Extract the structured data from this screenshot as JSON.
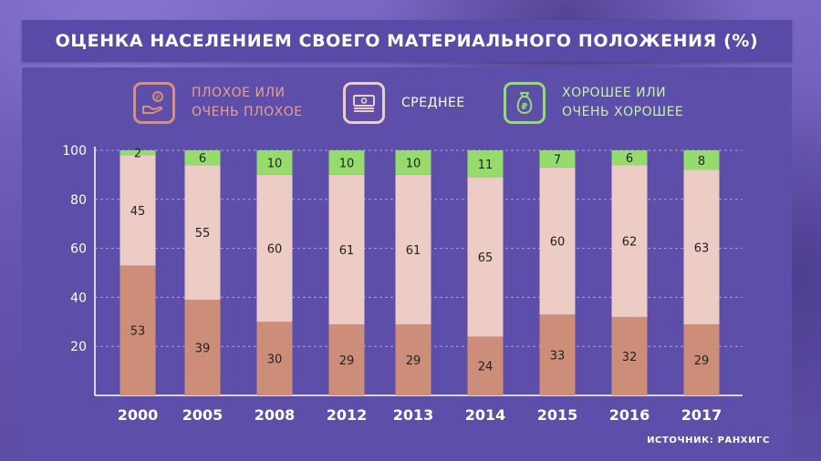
{
  "title": "ОЦЕНКА НАСЕЛЕНИЕМ СВОЕГО МАТЕРИАЛЬНОГО ПОЛОЖЕНИЯ (%)",
  "source": "ИСТОЧНИК: РАНХИГС",
  "colors": {
    "bad": "#cd8e79",
    "average": "#ecccc4",
    "good": "#96dc6c",
    "bad_text": "#e9a08a",
    "avg_text": "#ffffff",
    "good_text": "#c6f2a8"
  },
  "legend": [
    {
      "key": "bad",
      "icon": "hand-coins-icon",
      "label": "ПЛОХОЕ ИЛИ\nОЧЕНЬ ПЛОХОЕ"
    },
    {
      "key": "average",
      "icon": "banknote-stack-icon",
      "label": "СРЕДНЕЕ"
    },
    {
      "key": "good",
      "icon": "money-bag-ruble-icon",
      "label": "ХОРОШЕЕ ИЛИ\nОЧЕНЬ ХОРОШЕЕ"
    }
  ],
  "chart_data": {
    "type": "bar",
    "stacked": true,
    "categories": [
      "2000",
      "2005",
      "2008",
      "2012",
      "2013",
      "2014",
      "2015",
      "2016",
      "2017"
    ],
    "series": [
      {
        "name": "ПЛОХОЕ ИЛИ ОЧЕНЬ ПЛОХОЕ",
        "values": [
          53,
          39,
          30,
          29,
          29,
          24,
          33,
          32,
          29
        ]
      },
      {
        "name": "СРЕДНЕЕ",
        "values": [
          45,
          55,
          60,
          61,
          61,
          65,
          60,
          62,
          63
        ]
      },
      {
        "name": "ХОРОШЕЕ ИЛИ ОЧЕНЬ ХОРОШЕЕ",
        "values": [
          2,
          6,
          10,
          10,
          10,
          11,
          7,
          6,
          8
        ]
      }
    ],
    "ylim": [
      0,
      100
    ],
    "yticks": [
      20,
      40,
      60,
      80,
      100
    ],
    "grid": true,
    "legend_position": "top"
  }
}
